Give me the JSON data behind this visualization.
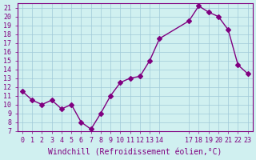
{
  "x": [
    0,
    1,
    2,
    3,
    4,
    5,
    6,
    7,
    8,
    9,
    10,
    11,
    12,
    13,
    14,
    17,
    18,
    19,
    20,
    21,
    22,
    23
  ],
  "y": [
    11.5,
    10.5,
    10.0,
    10.5,
    9.5,
    10.0,
    8.0,
    7.2,
    9.0,
    11.0,
    12.5,
    13.0,
    13.2,
    15.0,
    17.5,
    19.5,
    21.2,
    20.5,
    20.0,
    18.5,
    14.5,
    13.5
  ],
  "xlim": [
    -0.5,
    23.5
  ],
  "ylim": [
    7,
    21.5
  ],
  "yticks": [
    7,
    8,
    9,
    10,
    11,
    12,
    13,
    14,
    15,
    16,
    17,
    18,
    19,
    20,
    21
  ],
  "xticks": [
    0,
    1,
    2,
    3,
    4,
    5,
    6,
    7,
    8,
    9,
    10,
    11,
    12,
    13,
    14,
    17,
    18,
    19,
    20,
    21,
    22,
    23
  ],
  "xlabel": "Windchill (Refroidissement éolien,°C)",
  "line_color": "#800080",
  "marker_color": "#800080",
  "bg_color": "#d0f0f0",
  "grid_color": "#a0c8d8",
  "tick_label_color": "#800080",
  "axis_color": "#800080",
  "xlabel_color": "#800080",
  "title_fontsize": 7,
  "label_fontsize": 7
}
